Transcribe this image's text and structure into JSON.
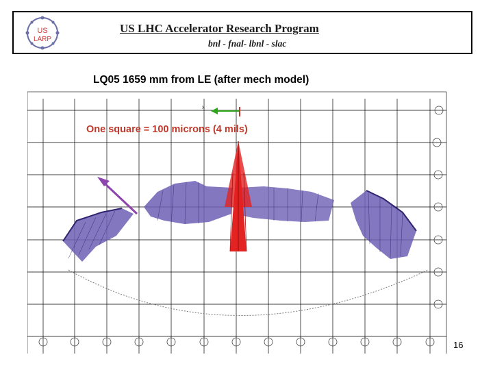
{
  "header": {
    "title": "US LHC Accelerator Research Program",
    "subtitle": "bnl - fnal- lbnl - slac",
    "logo": {
      "line1": "US",
      "line2": "LARP",
      "icon": "us-larp-logo"
    }
  },
  "slide": {
    "title": "LQ05  1659 mm from LE (after mech model)",
    "scale_note": "One square = 100 microns (4 mils)",
    "page_number": "16"
  },
  "colors": {
    "grid": "#000000",
    "deformation": "#5b4aa6",
    "deformation_dark": "#2e2470",
    "arrow": "#e32222",
    "scale_note": "#c0392b",
    "reference_arrow": "#2fa51c"
  }
}
